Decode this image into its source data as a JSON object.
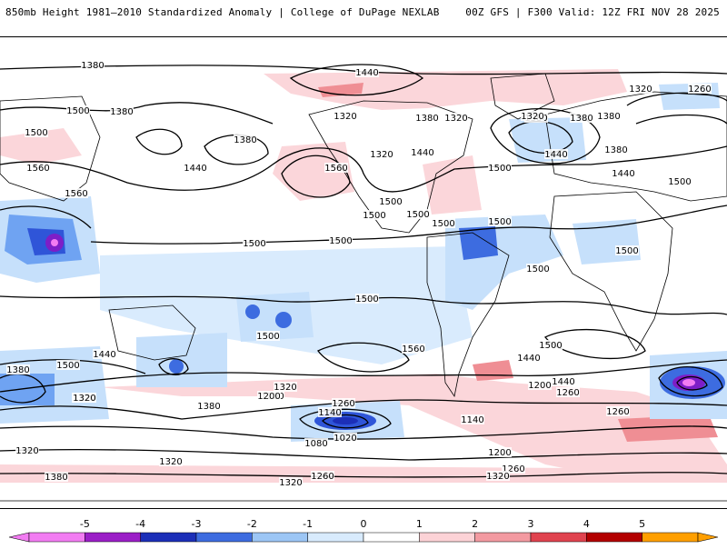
{
  "header": {
    "title": "850mb Height 1981–2010 Standardized Anomaly | College of DuPage NEXLAB",
    "run_info": "00Z GFS | F300 Valid: 12Z FRI NOV 28 2025"
  },
  "map": {
    "contour_labels": [
      "1380",
      "1440",
      "1320",
      "1260",
      "1380",
      "1320",
      "1380",
      "1440",
      "1500",
      "1380",
      "1320",
      "1440",
      "1320",
      "1380",
      "1500",
      "1380",
      "1440",
      "1560",
      "1500",
      "1560",
      "1560",
      "1500",
      "1500",
      "1500",
      "1500",
      "1500",
      "1500",
      "1500",
      "1500",
      "1560",
      "1500",
      "1500",
      "1440",
      "1500",
      "1380",
      "1440",
      "1380",
      "1320",
      "1500",
      "1380",
      "1260",
      "1200",
      "1320",
      "1200",
      "1260",
      "1140",
      "1320",
      "1260",
      "1140",
      "1020",
      "1080",
      "1260",
      "1320",
      "1200",
      "1260",
      "1320",
      "1380",
      "1320",
      "1320",
      "1200",
      "1500",
      "1500",
      "1440",
      "1440",
      "1320",
      "1380"
    ],
    "colors": {
      "land_outline": "#000000",
      "contour": "#000000",
      "neg1": "#c6e0fb",
      "neg2": "#6fa3f2",
      "neg3": "#2f55d8",
      "neg4": "#7d1ec7",
      "neg5": "#f27cf2",
      "pos1": "#f9c9ce",
      "pos2": "#ef8e94",
      "pos3": "#d8364a",
      "pos4": "#b00000",
      "pos5": "#ff9f00"
    }
  },
  "colorbar": {
    "ticks": [
      "-5",
      "-4",
      "-3",
      "-2",
      "-1",
      "0",
      "1",
      "2",
      "3",
      "4",
      "5"
    ],
    "colors": [
      "#f27cf2",
      "#9b1ec7",
      "#1c2fb8",
      "#3d6ce0",
      "#9cc6f5",
      "#d8ebfd",
      "#ffffff",
      "#fcd2d6",
      "#f39aa1",
      "#e0434f",
      "#b30000",
      "#ff9f00"
    ]
  }
}
